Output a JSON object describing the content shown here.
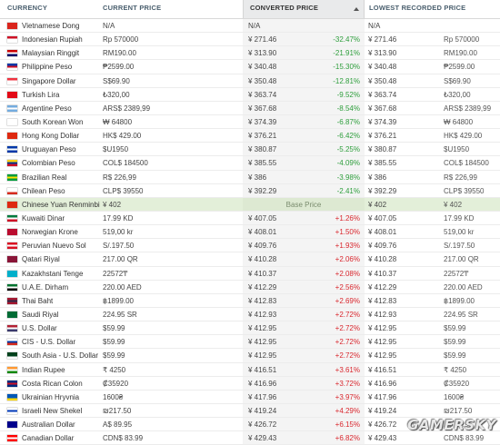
{
  "header": {
    "currency": "CURRENCY",
    "current_price": "CURRENT PRICE",
    "converted_price": "CONVERTED PRICE",
    "lowest_recorded_price": "LOWEST RECORDED PRICE"
  },
  "rows": [
    {
      "name": "Vietnamese Dong",
      "current": "N/A",
      "converted": "N/A",
      "pct": "",
      "pct_dir": "",
      "lowest": "N/A",
      "lowest_local": "",
      "flag": [
        "#da251d",
        "#da251d",
        "#da251d"
      ]
    },
    {
      "name": "Indonesian Rupiah",
      "current": "Rp 570000",
      "converted": "¥ 271.46",
      "pct": "-32.47%",
      "pct_dir": "neg",
      "lowest": "¥ 271.46",
      "lowest_local": "Rp 570000",
      "flag": [
        "#ce1126",
        "#ffffff",
        "#ffffff"
      ]
    },
    {
      "name": "Malaysian Ringgit",
      "current": "RM190.00",
      "converted": "¥ 313.90",
      "pct": "-21.91%",
      "pct_dir": "neg",
      "lowest": "¥ 313.90",
      "lowest_local": "RM190.00",
      "flag": [
        "#cc0001",
        "#ffffff",
        "#010066"
      ]
    },
    {
      "name": "Philippine Peso",
      "current": "₱2599.00",
      "converted": "¥ 340.48",
      "pct": "-15.30%",
      "pct_dir": "neg",
      "lowest": "¥ 340.48",
      "lowest_local": "₱2599.00",
      "flag": [
        "#0038a8",
        "#ce1126",
        "#ffffff"
      ]
    },
    {
      "name": "Singapore Dollar",
      "current": "S$69.90",
      "converted": "¥ 350.48",
      "pct": "-12.81%",
      "pct_dir": "neg",
      "lowest": "¥ 350.48",
      "lowest_local": "S$69.90",
      "flag": [
        "#ef3340",
        "#ffffff",
        "#ffffff"
      ]
    },
    {
      "name": "Turkish Lira",
      "current": "₺320,00",
      "converted": "¥ 363.74",
      "pct": "-9.52%",
      "pct_dir": "neg",
      "lowest": "¥ 363.74",
      "lowest_local": "₺320,00",
      "flag": [
        "#e30a17",
        "#e30a17",
        "#e30a17"
      ]
    },
    {
      "name": "Argentine Peso",
      "current": "ARS$ 2389,99",
      "converted": "¥ 367.68",
      "pct": "-8.54%",
      "pct_dir": "neg",
      "lowest": "¥ 367.68",
      "lowest_local": "ARS$ 2389,99",
      "flag": [
        "#74acdf",
        "#ffffff",
        "#74acdf"
      ]
    },
    {
      "name": "South Korean Won",
      "current": "₩ 64800",
      "converted": "¥ 374.39",
      "pct": "-6.87%",
      "pct_dir": "neg",
      "lowest": "¥ 374.39",
      "lowest_local": "₩ 64800",
      "flag": [
        "#ffffff",
        "#ffffff",
        "#ffffff"
      ]
    },
    {
      "name": "Hong Kong Dollar",
      "current": "HK$ 429.00",
      "converted": "¥ 376.21",
      "pct": "-6.42%",
      "pct_dir": "neg",
      "lowest": "¥ 376.21",
      "lowest_local": "HK$ 429.00",
      "flag": [
        "#de2910",
        "#de2910",
        "#de2910"
      ]
    },
    {
      "name": "Uruguayan Peso",
      "current": "$U1950",
      "converted": "¥ 380.87",
      "pct": "-5.25%",
      "pct_dir": "neg",
      "lowest": "¥ 380.87",
      "lowest_local": "$U1950",
      "flag": [
        "#0038a8",
        "#ffffff",
        "#0038a8"
      ]
    },
    {
      "name": "Colombian Peso",
      "current": "COL$ 184500",
      "converted": "¥ 385.55",
      "pct": "-4.09%",
      "pct_dir": "neg",
      "lowest": "¥ 385.55",
      "lowest_local": "COL$ 184500",
      "flag": [
        "#fcd116",
        "#003893",
        "#ce1126"
      ]
    },
    {
      "name": "Brazilian Real",
      "current": "R$ 226,99",
      "converted": "¥ 386",
      "pct": "-3.98%",
      "pct_dir": "neg",
      "lowest": "¥ 386",
      "lowest_local": "R$ 226,99",
      "flag": [
        "#009c3b",
        "#ffdf00",
        "#009c3b"
      ]
    },
    {
      "name": "Chilean Peso",
      "current": "CLP$ 39550",
      "converted": "¥ 392.29",
      "pct": "-2.41%",
      "pct_dir": "neg",
      "lowest": "¥ 392.29",
      "lowest_local": "CLP$ 39550",
      "flag": [
        "#ffffff",
        "#ffffff",
        "#d52b1e"
      ]
    },
    {
      "name": "Chinese Yuan Renminbi",
      "current": "¥ 402",
      "converted": "",
      "pct": "",
      "pct_dir": "",
      "base_label": "Base Price",
      "lowest": "¥ 402",
      "lowest_local": "¥ 402",
      "flag": [
        "#de2910",
        "#de2910",
        "#de2910"
      ]
    },
    {
      "name": "Kuwaiti Dinar",
      "current": "17.99 KD",
      "converted": "¥ 407.05",
      "pct": "+1.26%",
      "pct_dir": "pos",
      "lowest": "¥ 407.05",
      "lowest_local": "17.99 KD",
      "flag": [
        "#007a3d",
        "#ffffff",
        "#ce1126"
      ]
    },
    {
      "name": "Norwegian Krone",
      "current": "519,00 kr",
      "converted": "¥ 408.01",
      "pct": "+1.50%",
      "pct_dir": "pos",
      "lowest": "¥ 408.01",
      "lowest_local": "519,00 kr",
      "flag": [
        "#ba0c2f",
        "#ba0c2f",
        "#ba0c2f"
      ]
    },
    {
      "name": "Peruvian Nuevo Sol",
      "current": "S/.197.50",
      "converted": "¥ 409.76",
      "pct": "+1.93%",
      "pct_dir": "pos",
      "lowest": "¥ 409.76",
      "lowest_local": "S/.197.50",
      "flag": [
        "#d91023",
        "#ffffff",
        "#d91023"
      ]
    },
    {
      "name": "Qatari Riyal",
      "current": "217.00 QR",
      "converted": "¥ 410.28",
      "pct": "+2.06%",
      "pct_dir": "pos",
      "lowest": "¥ 410.28",
      "lowest_local": "217.00 QR",
      "flag": [
        "#8a1538",
        "#8a1538",
        "#8a1538"
      ]
    },
    {
      "name": "Kazakhstani Tenge",
      "current": "22572₸",
      "converted": "¥ 410.37",
      "pct": "+2.08%",
      "pct_dir": "pos",
      "lowest": "¥ 410.37",
      "lowest_local": "22572₸",
      "flag": [
        "#00afca",
        "#00afca",
        "#00afca"
      ]
    },
    {
      "name": "U.A.E. Dirham",
      "current": "220.00 AED",
      "converted": "¥ 412.29",
      "pct": "+2.56%",
      "pct_dir": "pos",
      "lowest": "¥ 412.29",
      "lowest_local": "220.00 AED",
      "flag": [
        "#00732f",
        "#ffffff",
        "#000000"
      ]
    },
    {
      "name": "Thai Baht",
      "current": "฿1899.00",
      "converted": "¥ 412.83",
      "pct": "+2.69%",
      "pct_dir": "pos",
      "lowest": "¥ 412.83",
      "lowest_local": "฿1899.00",
      "flag": [
        "#a51931",
        "#2d2a4a",
        "#a51931"
      ]
    },
    {
      "name": "Saudi Riyal",
      "current": "224.95 SR",
      "converted": "¥ 412.93",
      "pct": "+2.72%",
      "pct_dir": "pos",
      "lowest": "¥ 412.93",
      "lowest_local": "224.95 SR",
      "flag": [
        "#006c35",
        "#006c35",
        "#006c35"
      ]
    },
    {
      "name": "U.S. Dollar",
      "current": "$59.99",
      "converted": "¥ 412.95",
      "pct": "+2.72%",
      "pct_dir": "pos",
      "lowest": "¥ 412.95",
      "lowest_local": "$59.99",
      "flag": [
        "#b22234",
        "#ffffff",
        "#3c3b6e"
      ]
    },
    {
      "name": "CIS - U.S. Dollar",
      "current": "$59.99",
      "converted": "¥ 412.95",
      "pct": "+2.72%",
      "pct_dir": "pos",
      "lowest": "¥ 412.95",
      "lowest_local": "$59.99",
      "flag": [
        "#ffffff",
        "#0039a6",
        "#d52b1e"
      ]
    },
    {
      "name": "South Asia - U.S. Dollar",
      "current": "$59.99",
      "converted": "¥ 412.95",
      "pct": "+2.72%",
      "pct_dir": "pos",
      "lowest": "¥ 412.95",
      "lowest_local": "$59.99",
      "flag": [
        "#01411c",
        "#01411c",
        "#ffffff"
      ]
    },
    {
      "name": "Indian Rupee",
      "current": "₹ 4250",
      "converted": "¥ 416.51",
      "pct": "+3.61%",
      "pct_dir": "pos",
      "lowest": "¥ 416.51",
      "lowest_local": "₹ 4250",
      "flag": [
        "#ff9933",
        "#ffffff",
        "#138808"
      ]
    },
    {
      "name": "Costa Rican Colon",
      "current": "₡35920",
      "converted": "¥ 416.96",
      "pct": "+3.72%",
      "pct_dir": "pos",
      "lowest": "¥ 416.96",
      "lowest_local": "₡35920",
      "flag": [
        "#002b7f",
        "#ce1126",
        "#002b7f"
      ]
    },
    {
      "name": "Ukrainian Hryvnia",
      "current": "1600₴",
      "converted": "¥ 417.96",
      "pct": "+3.97%",
      "pct_dir": "pos",
      "lowest": "¥ 417.96",
      "lowest_local": "1600₴",
      "flag": [
        "#0057b7",
        "#0057b7",
        "#ffd700"
      ]
    },
    {
      "name": "Israeli New Shekel",
      "current": "₪217.50",
      "converted": "¥ 419.24",
      "pct": "+4.29%",
      "pct_dir": "pos",
      "lowest": "¥ 419.24",
      "lowest_local": "₪217.50",
      "flag": [
        "#ffffff",
        "#0038b8",
        "#ffffff"
      ]
    },
    {
      "name": "Australian Dollar",
      "current": "A$ 89.95",
      "converted": "¥ 426.72",
      "pct": "+6.15%",
      "pct_dir": "pos",
      "lowest": "¥ 426.72",
      "lowest_local": "A$ 89.95",
      "flag": [
        "#00008b",
        "#00008b",
        "#00008b"
      ]
    },
    {
      "name": "Canadian Dollar",
      "current": "CDN$ 83.99",
      "converted": "¥ 429.43",
      "pct": "+6.82%",
      "pct_dir": "pos",
      "lowest": "¥ 429.43",
      "lowest_local": "CDN$ 83.99",
      "flag": [
        "#ff0000",
        "#ffffff",
        "#ff0000"
      ]
    }
  ],
  "watermark": "GAMERSKY"
}
